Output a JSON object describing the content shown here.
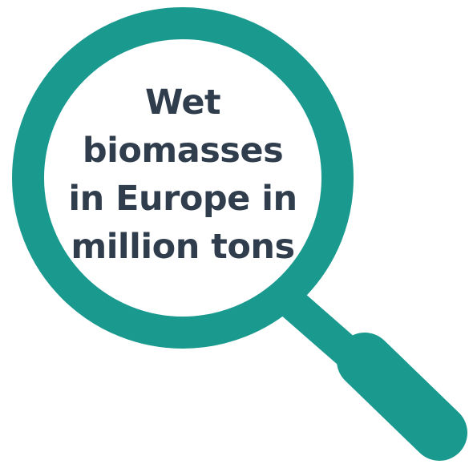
{
  "title_lines": [
    "Wet",
    "biomasses",
    "in Europe in",
    "million tons"
  ],
  "colors": {
    "ring": "#1a9a8f",
    "handle": "#1a9a8f",
    "text": "#2f3d4d",
    "lens": "#ffffff"
  },
  "icons": {
    "magnifier": "magnifying-glass-icon"
  }
}
